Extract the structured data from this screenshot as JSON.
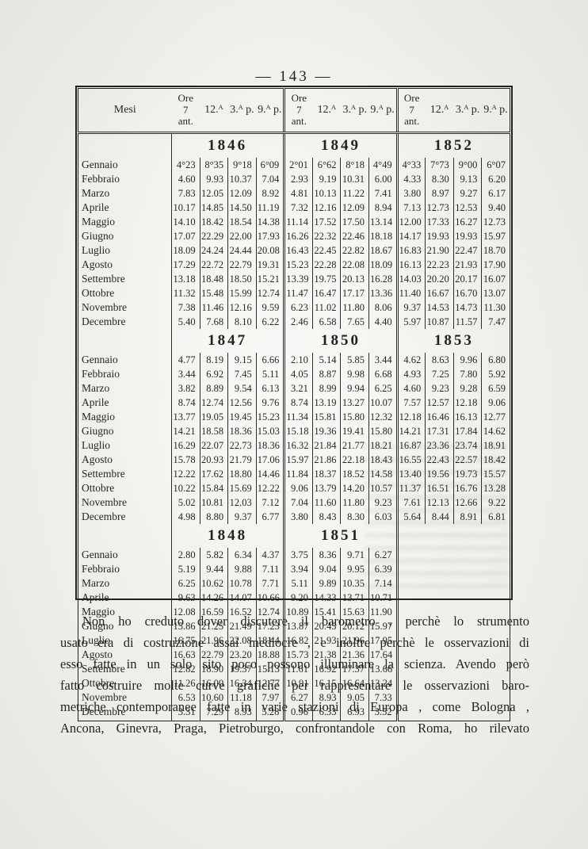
{
  "page_number": "— 143 —",
  "table": {
    "header": {
      "mesi": "Mesi",
      "cols": [
        "Ore\n7\nant.",
        "12.ᴬ",
        "3.ᴬ p.",
        "9.ᴬ p."
      ]
    },
    "months": [
      "Gennaio",
      "Febbraio",
      "Marzo",
      "Aprile",
      "Maggio",
      "Giugno",
      "Luglio",
      "Agosto",
      "Settembre",
      "Ottobre",
      "Novembre",
      "Decembre"
    ],
    "blocks": [
      {
        "years": [
          {
            "year": "1846",
            "rows": [
              [
                "4°23",
                "8°35",
                "9°18",
                "6°09"
              ],
              [
                "4.60",
                "9.93",
                "10.37",
                "7.04"
              ],
              [
                "7.83",
                "12.05",
                "12.09",
                "8.92"
              ],
              [
                "10.17",
                "14.85",
                "14.50",
                "11.19"
              ],
              [
                "14.10",
                "18.42",
                "18.54",
                "14.38"
              ],
              [
                "17.07",
                "22.29",
                "22.00",
                "17.93"
              ],
              [
                "18.09",
                "24.24",
                "24.44",
                "20.08"
              ],
              [
                "17.29",
                "22.72",
                "22.79",
                "19.31"
              ],
              [
                "13.18",
                "18.48",
                "18.50",
                "15.21"
              ],
              [
                "11.32",
                "15.48",
                "15.99",
                "12.74"
              ],
              [
                "7.38",
                "11.46",
                "12.16",
                "9.59"
              ],
              [
                "5.40",
                "7.68",
                "8.10",
                "6.22"
              ]
            ]
          },
          {
            "year": "1849",
            "rows": [
              [
                "2°01",
                "6°62",
                "8°18",
                "4°49"
              ],
              [
                "2.93",
                "9.19",
                "10.31",
                "6.00"
              ],
              [
                "4.81",
                "10.13",
                "11.22",
                "7.41"
              ],
              [
                "7.32",
                "12.16",
                "12.09",
                "8.94"
              ],
              [
                "11.14",
                "17.52",
                "17.50",
                "13.14"
              ],
              [
                "16.26",
                "22.32",
                "22.46",
                "18.18"
              ],
              [
                "16.43",
                "22.45",
                "22.82",
                "18.67"
              ],
              [
                "15.23",
                "22.28",
                "22.08",
                "18.09"
              ],
              [
                "13.39",
                "19.75",
                "20.13",
                "16.28"
              ],
              [
                "11.47",
                "16.47",
                "17.17",
                "13.36"
              ],
              [
                "6.23",
                "11.02",
                "11.80",
                "8.06"
              ],
              [
                "2.46",
                "6.58",
                "7.65",
                "4.40"
              ]
            ]
          },
          {
            "year": "1852",
            "rows": [
              [
                "4°33",
                "7°73",
                "9°00",
                "6°07"
              ],
              [
                "4.33",
                "8.30",
                "9.13",
                "6.20"
              ],
              [
                "3.80",
                "8.97",
                "9.27",
                "6.17"
              ],
              [
                "7.13",
                "12.73",
                "12.53",
                "9.40"
              ],
              [
                "12.00",
                "17.33",
                "16.27",
                "12.73"
              ],
              [
                "14.17",
                "19.93",
                "19.93",
                "15.97"
              ],
              [
                "16.83",
                "21.90",
                "22.47",
                "18.70"
              ],
              [
                "16.13",
                "22.23",
                "21.93",
                "17.90"
              ],
              [
                "14.03",
                "20.20",
                "20.17",
                "16.07"
              ],
              [
                "11.40",
                "16.67",
                "16.70",
                "13.07"
              ],
              [
                "9.37",
                "14.53",
                "14.73",
                "11.30"
              ],
              [
                "5.97",
                "10.87",
                "11.57",
                "7.47"
              ]
            ]
          }
        ]
      },
      {
        "years": [
          {
            "year": "1847",
            "rows": [
              [
                "4.77",
                "8.19",
                "9.15",
                "6.66"
              ],
              [
                "3.44",
                "6.92",
                "7.45",
                "5.11"
              ],
              [
                "3.82",
                "8.89",
                "9.54",
                "6.13"
              ],
              [
                "8.74",
                "12.74",
                "12.56",
                "9.76"
              ],
              [
                "13.77",
                "19.05",
                "19.45",
                "15.23"
              ],
              [
                "14.21",
                "18.58",
                "18.36",
                "15.03"
              ],
              [
                "16.29",
                "22.07",
                "22.73",
                "18.36"
              ],
              [
                "15.78",
                "20.93",
                "21.79",
                "17.06"
              ],
              [
                "12.22",
                "17.62",
                "18.80",
                "14.46"
              ],
              [
                "10.22",
                "15.84",
                "15.69",
                "12.22"
              ],
              [
                "5.02",
                "10.81",
                "12.03",
                "7.12"
              ],
              [
                "4.98",
                "8.80",
                "9.37",
                "6.77"
              ]
            ]
          },
          {
            "year": "1850",
            "rows": [
              [
                "2.10",
                "5.14",
                "5.85",
                "3.44"
              ],
              [
                "4.05",
                "8.87",
                "9.98",
                "6.68"
              ],
              [
                "3.21",
                "8.99",
                "9.94",
                "6.25"
              ],
              [
                "8.74",
                "13.19",
                "13.27",
                "10.07"
              ],
              [
                "11.34",
                "15.81",
                "15.80",
                "12.32"
              ],
              [
                "15.18",
                "19.36",
                "19.41",
                "15.80"
              ],
              [
                "16.32",
                "21.84",
                "21.77",
                "18.21"
              ],
              [
                "15.97",
                "21.86",
                "22.18",
                "18.43"
              ],
              [
                "11.84",
                "18.37",
                "18.52",
                "14.58"
              ],
              [
                "9.06",
                "13.79",
                "14.20",
                "10.57"
              ],
              [
                "7.04",
                "11.60",
                "11.80",
                "9.23"
              ],
              [
                "3.80",
                "8.43",
                "8.30",
                "6.03"
              ]
            ]
          },
          {
            "year": "1853",
            "rows": [
              [
                "4.62",
                "8.63",
                "9.96",
                "6.80"
              ],
              [
                "4.93",
                "7.25",
                "7.80",
                "5.92"
              ],
              [
                "4.60",
                "9.23",
                "9.28",
                "6.59"
              ],
              [
                "7.57",
                "12.57",
                "12.18",
                "9.06"
              ],
              [
                "12.18",
                "16.46",
                "16.13",
                "12.77"
              ],
              [
                "14.21",
                "17.31",
                "17.84",
                "14.62"
              ],
              [
                "16.87",
                "23.36",
                "23.74",
                "18.91"
              ],
              [
                "16.55",
                "22.43",
                "22.57",
                "18.42"
              ],
              [
                "13.40",
                "19.56",
                "19.73",
                "15.57"
              ],
              [
                "11.37",
                "16.51",
                "16.76",
                "13.28"
              ],
              [
                "7.61",
                "12.13",
                "12.66",
                "9.22"
              ],
              [
                "5.64",
                "8.44",
                "8.91",
                "6.81"
              ]
            ]
          }
        ]
      },
      {
        "years": [
          {
            "year": "1848",
            "rows": [
              [
                "2.80",
                "5.82",
                "6.34",
                "4.37"
              ],
              [
                "5.19",
                "9.44",
                "9.88",
                "7.11"
              ],
              [
                "6.25",
                "10.62",
                "10.78",
                "7.71"
              ],
              [
                "9.63",
                "14.26",
                "14.07",
                "10.66"
              ],
              [
                "12.08",
                "16.59",
                "16.52",
                "12.74"
              ],
              [
                "15.86",
                "21.25",
                "21.49",
                "17.23"
              ],
              [
                "16.75",
                "21.96",
                "22.08",
                "18.44"
              ],
              [
                "16.63",
                "22.79",
                "23.20",
                "18.88"
              ],
              [
                "12.82",
                "18.90",
                "19.37",
                "15.13"
              ],
              [
                "11.26",
                "16.00",
                "16.34",
                "12.77"
              ],
              [
                "6.53",
                "10.60",
                "11.18",
                "7.97"
              ],
              [
                "3.31",
                "7.29",
                "8.93",
                "5.28"
              ]
            ]
          },
          {
            "year": "1851",
            "rows": [
              [
                "3.75",
                "8.36",
                "9.71",
                "6.27"
              ],
              [
                "3.94",
                "9.04",
                "9.95",
                "6.39"
              ],
              [
                "5.11",
                "9.89",
                "10.35",
                "7.14"
              ],
              [
                "9.20",
                "14.33",
                "13.71",
                "10.71"
              ],
              [
                "10.89",
                "15.41",
                "15.63",
                "11.90"
              ],
              [
                "13.87",
                "20.45",
                "20.12",
                "15.97"
              ],
              [
                "16.82",
                "21.93",
                "21.96",
                "17.95"
              ],
              [
                "15.73",
                "21.38",
                "21.36",
                "17.64"
              ],
              [
                "11.61",
                "16.92",
                "17.37",
                "13.66"
              ],
              [
                "10.91",
                "16.15",
                "16.64",
                "13.24"
              ],
              [
                "6.27",
                "8.93",
                "9.05",
                "7.33"
              ],
              [
                "0.96",
                "6.33",
                "6.93",
                "3.52"
              ]
            ]
          },
          null
        ]
      }
    ]
  },
  "paragraph": {
    "lines": [
      "Non ho creduto dover discutere il barometro , perchè lo strumento",
      "usato era di costruzione assai mediocre , e inoltre perchè le osservazioni di",
      "esso fatte in un solo sito poco possono illuminare la scienza. Avendo però",
      "fatto costruire molte curve grafiche per rappresentare le osservazioni baro-",
      "metriche contemporanee fatte in varie stazioni di Europa , come Bologna ,",
      "Ancona, Ginevra, Praga, Pietroburgo, confrontandole con Roma, ho rilevato"
    ]
  }
}
